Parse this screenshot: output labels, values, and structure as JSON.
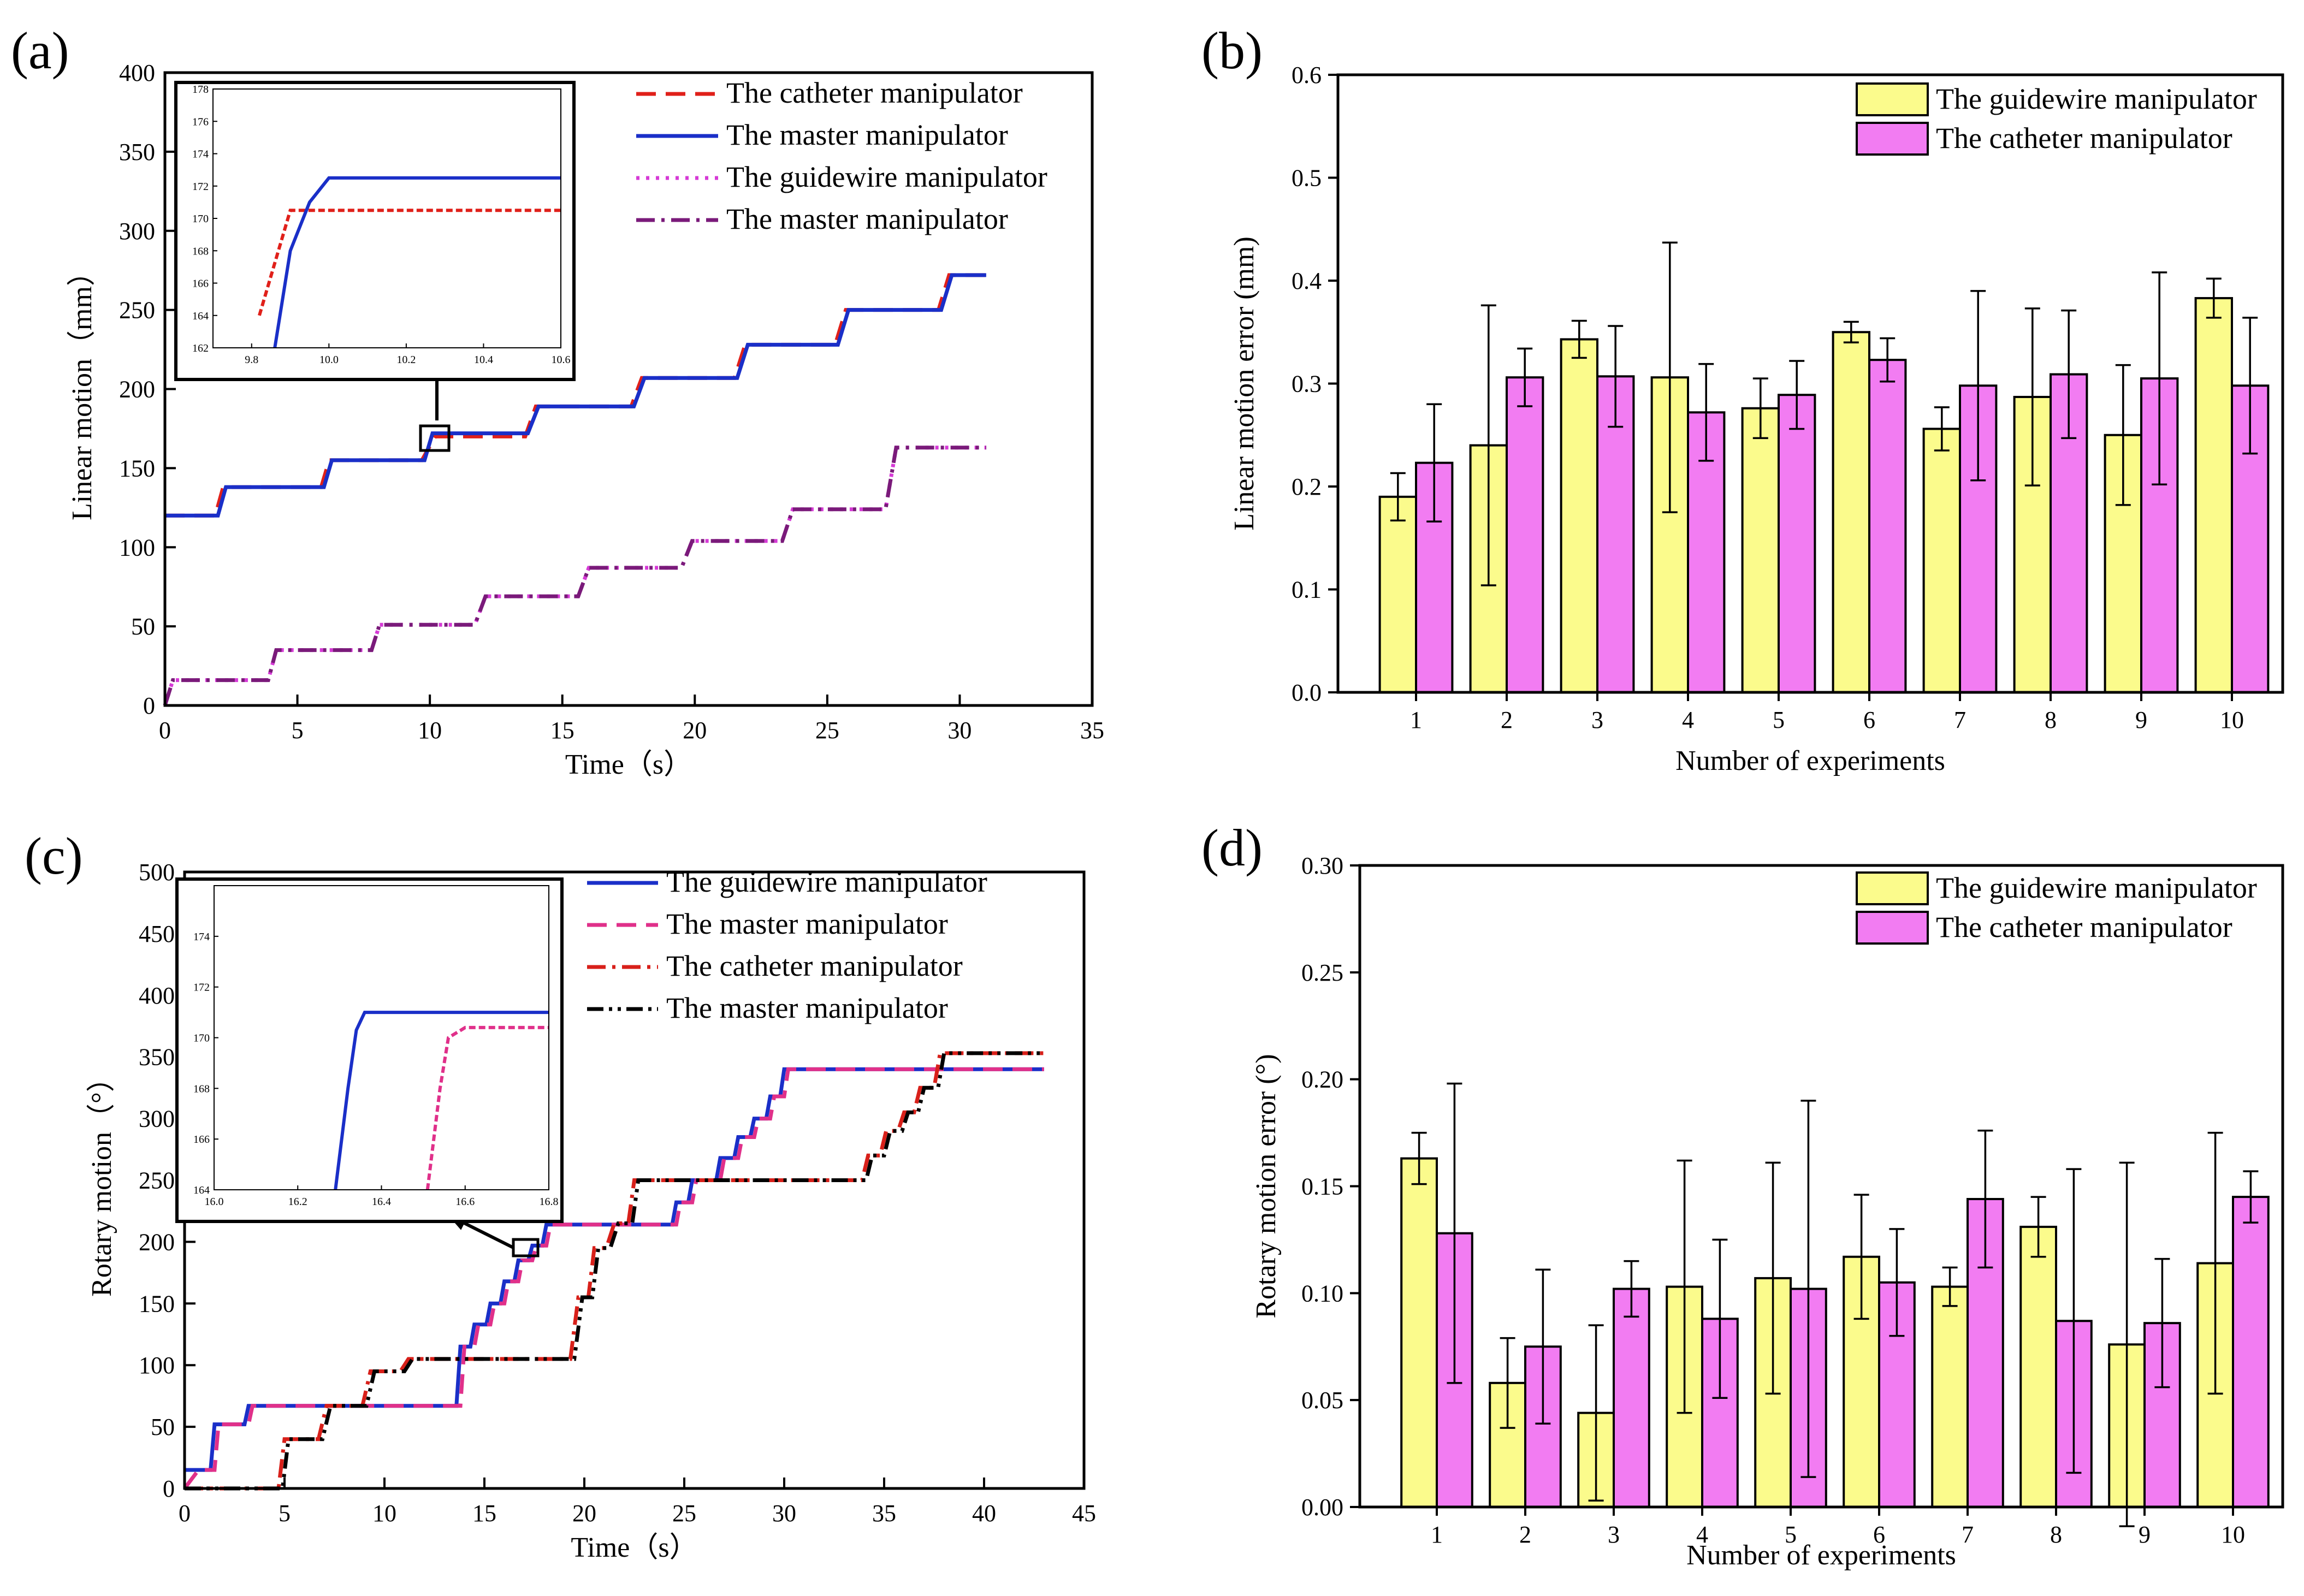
{
  "panels": {
    "a": {
      "label": "(a)"
    },
    "b": {
      "label": "(b)"
    },
    "c": {
      "label": "(c)"
    },
    "d": {
      "label": "(d)"
    }
  },
  "chart_data": [
    {
      "id": "a",
      "type": "line",
      "xlabel": "Time（s）",
      "ylabel": "Linear motion（mm）",
      "xlim": [
        0,
        35
      ],
      "ylim": [
        0,
        400
      ],
      "xticks": [
        0,
        5,
        10,
        15,
        20,
        25,
        30,
        35
      ],
      "yticks": [
        0,
        50,
        100,
        150,
        200,
        250,
        300,
        350,
        400
      ],
      "series": [
        {
          "name": "The catheter manipulator",
          "color": "#e0201a",
          "dash": "dashed",
          "x": [
            0,
            1.9,
            2.2,
            5.9,
            6.2,
            9.7,
            10.2,
            13.6,
            14,
            17.6,
            18,
            21.5,
            21.9,
            25.3,
            25.7,
            29.2,
            29.6,
            31
          ],
          "y": [
            120,
            120,
            138,
            138,
            155,
            155,
            170,
            170,
            189,
            189,
            207,
            207,
            228,
            228,
            250,
            250,
            272,
            272
          ]
        },
        {
          "name": "The master manipulator",
          "color": "#1a2fc8",
          "dash": "solid",
          "x": [
            0,
            2,
            2.3,
            6,
            6.3,
            9.8,
            10.1,
            13.7,
            14.1,
            17.7,
            18.1,
            21.6,
            22,
            25.4,
            25.8,
            29.3,
            29.7,
            31
          ],
          "y": [
            120,
            120,
            138,
            138,
            155,
            155,
            172,
            172,
            189,
            189,
            207,
            207,
            228,
            228,
            250,
            250,
            272,
            272
          ]
        },
        {
          "name": "The guidewire manipulator",
          "color": "#d63ad6",
          "dash": "dotted",
          "x": [
            0,
            0.3,
            3.9,
            4.2,
            7.8,
            8.1,
            11.7,
            12.1,
            15.6,
            16,
            19.5,
            19.9,
            23.3,
            23.7,
            27.2,
            27.6,
            31
          ],
          "y": [
            0,
            16,
            16,
            35,
            35,
            51,
            51,
            69,
            69,
            87,
            87,
            104,
            104,
            124,
            124,
            163,
            163
          ]
        },
        {
          "name": "The master manipulator",
          "color": "#7a1a7a",
          "dash": "dashdot",
          "x": [
            0,
            0.3,
            3.9,
            4.2,
            7.8,
            8.1,
            11.7,
            12.1,
            15.6,
            16,
            19.5,
            19.9,
            23.3,
            23.7,
            27.2,
            27.6,
            31
          ],
          "y": [
            0,
            16,
            16,
            35,
            35,
            51,
            51,
            69,
            69,
            87,
            87,
            104,
            104,
            124,
            124,
            163,
            163
          ]
        }
      ],
      "inset": {
        "xlim": [
          9.7,
          10.6
        ],
        "ylim": [
          162,
          178
        ],
        "xticks": [
          9.8,
          10.0,
          10.2,
          10.4,
          10.6
        ],
        "yticks": [
          162,
          164,
          166,
          168,
          170,
          172,
          174,
          176,
          178
        ],
        "series": [
          {
            "color": "#e0201a",
            "dash": "dashed",
            "x": [
              9.82,
              9.9,
              10.6
            ],
            "y": [
              164,
              170.5,
              170.5
            ]
          },
          {
            "color": "#1a2fc8",
            "dash": "solid",
            "x": [
              9.86,
              9.9,
              9.95,
              10.0,
              10.6
            ],
            "y": [
              162,
              168,
              171,
              172.5,
              172.5
            ]
          }
        ]
      }
    },
    {
      "id": "b",
      "type": "bar",
      "xlabel": "Number of experiments",
      "ylabel": "Linear motion error (mm)",
      "ylim": [
        0,
        0.6
      ],
      "yticks": [
        "0.0",
        "0.1",
        "0.2",
        "0.3",
        "0.4",
        "0.5",
        "0.6"
      ],
      "categories": [
        "1",
        "2",
        "3",
        "4",
        "5",
        "6",
        "7",
        "8",
        "9",
        "10"
      ],
      "series": [
        {
          "name": "The guidewire manipulator",
          "color": "#fbfb8c",
          "values": [
            0.19,
            0.24,
            0.343,
            0.306,
            0.276,
            0.35,
            0.256,
            0.287,
            0.25,
            0.383
          ],
          "errors": [
            0.023,
            0.136,
            0.018,
            0.131,
            0.029,
            0.01,
            0.021,
            0.086,
            0.068,
            0.019
          ]
        },
        {
          "name": "The catheter manipulator",
          "color": "#f27cf2",
          "values": [
            0.223,
            0.306,
            0.307,
            0.272,
            0.289,
            0.323,
            0.298,
            0.309,
            0.305,
            0.298
          ],
          "errors": [
            0.057,
            0.028,
            0.049,
            0.047,
            0.033,
            0.021,
            0.092,
            0.062,
            0.103,
            0.066
          ]
        }
      ]
    },
    {
      "id": "c",
      "type": "line",
      "xlabel": "Time（s）",
      "ylabel": "Rotary motion（°）",
      "xlim": [
        0,
        45
      ],
      "ylim": [
        0,
        500
      ],
      "xticks": [
        0,
        5,
        10,
        15,
        20,
        25,
        30,
        35,
        40,
        45
      ],
      "yticks": [
        0,
        50,
        100,
        150,
        200,
        250,
        300,
        350,
        400,
        450,
        500
      ],
      "series": [
        {
          "name": "The guidewire manipulator",
          "color": "#1a2fc8",
          "dash": "solid",
          "x": [
            0,
            0.5,
            1.3,
            1.5,
            3,
            3.2,
            13.6,
            13.8,
            14.3,
            14.5,
            15.1,
            15.3,
            15.8,
            16,
            16.5,
            16.7,
            17.2,
            17.4,
            17.9,
            18.1,
            24.4,
            24.6,
            25.2,
            25.4,
            26.6,
            26.8,
            27.5,
            27.7,
            28.3,
            28.5,
            29.1,
            29.3,
            29.8,
            30,
            43
          ],
          "y": [
            15,
            15,
            15,
            52,
            52,
            67,
            67,
            115,
            115,
            133,
            133,
            150,
            150,
            168,
            168,
            185,
            185,
            197,
            197,
            214,
            214,
            232,
            232,
            250,
            250,
            268,
            268,
            285,
            285,
            300,
            300,
            318,
            318,
            340,
            340
          ]
        },
        {
          "name": "The master manipulator",
          "color": "#e0308a",
          "dash": "dashed",
          "x": [
            0,
            0.7,
            1.5,
            1.7,
            3.2,
            3.4,
            13.8,
            14,
            14.5,
            14.7,
            15.3,
            15.5,
            16,
            16.2,
            16.7,
            16.9,
            17.4,
            17.6,
            18.1,
            18.3,
            24.6,
            24.8,
            25.4,
            25.6,
            26.8,
            27,
            27.7,
            27.9,
            28.5,
            28.7,
            29.3,
            29.5,
            30,
            30.2,
            43
          ],
          "y": [
            0,
            15,
            15,
            52,
            52,
            67,
            67,
            115,
            115,
            133,
            133,
            150,
            150,
            168,
            168,
            185,
            185,
            197,
            197,
            214,
            214,
            232,
            232,
            250,
            250,
            268,
            268,
            285,
            285,
            300,
            300,
            318,
            318,
            340,
            340
          ]
        },
        {
          "name": "The catheter manipulator",
          "color": "#d8201a",
          "dash": "dashdot",
          "x": [
            0,
            4.7,
            5.0,
            6.7,
            7.1,
            8.9,
            9.3,
            10.8,
            11.2,
            19.3,
            19.7,
            20.2,
            20.5,
            21.1,
            21.5,
            22.2,
            22.5,
            33.9,
            34.2,
            34.8,
            35.1,
            35.7,
            36.0,
            36.5,
            36.8,
            37.5,
            37.8,
            43
          ],
          "y": [
            0,
            0,
            40,
            40,
            67,
            67,
            95,
            95,
            105,
            105,
            155,
            155,
            195,
            195,
            215,
            215,
            250,
            250,
            270,
            270,
            290,
            290,
            305,
            305,
            325,
            325,
            353,
            353
          ]
        },
        {
          "name": "The master manipulator",
          "color": "#000000",
          "dash": "dashdotdot",
          "x": [
            0,
            4.9,
            5.2,
            6.9,
            7.3,
            9.1,
            9.5,
            11,
            11.4,
            19.5,
            19.9,
            20.4,
            20.7,
            21.3,
            21.7,
            22.4,
            22.7,
            34.1,
            34.4,
            35.0,
            35.3,
            35.9,
            36.2,
            36.7,
            37.0,
            37.7,
            38.0,
            43
          ],
          "y": [
            0,
            0,
            40,
            40,
            67,
            67,
            95,
            95,
            105,
            105,
            155,
            155,
            195,
            195,
            215,
            215,
            250,
            250,
            270,
            270,
            290,
            290,
            305,
            305,
            325,
            325,
            353,
            353
          ]
        }
      ],
      "inset": {
        "xlim": [
          16.0,
          16.8
        ],
        "ylim": [
          164,
          176
        ],
        "xticks": [
          16.0,
          16.2,
          16.4,
          16.6,
          16.8
        ],
        "yticks": [
          164,
          166,
          168,
          170,
          172,
          174
        ],
        "series": [
          {
            "color": "#1a2fc8",
            "dash": "solid",
            "x": [
              16.29,
              16.32,
              16.34,
              16.36,
              16.8
            ],
            "y": [
              164,
              168,
              170.3,
              171,
              171
            ]
          },
          {
            "color": "#e0308a",
            "dash": "dashed",
            "x": [
              16.51,
              16.54,
              16.56,
              16.6,
              16.8
            ],
            "y": [
              164,
              168,
              170,
              170.4,
              170.4
            ]
          }
        ]
      }
    },
    {
      "id": "d",
      "type": "bar",
      "xlabel": "Number of experiments",
      "ylabel": "Rotary motion error (°)",
      "ylim": [
        0,
        0.3
      ],
      "yticks": [
        "0.00",
        "0.05",
        "0.10",
        "0.15",
        "0.20",
        "0.25",
        "0.30"
      ],
      "categories": [
        "1",
        "2",
        "3",
        "4",
        "5",
        "6",
        "7",
        "8",
        "9",
        "10"
      ],
      "series": [
        {
          "name": "The guidewire manipulator",
          "color": "#fbfb8c",
          "values": [
            0.163,
            0.058,
            0.044,
            0.103,
            0.107,
            0.117,
            0.103,
            0.131,
            0.076,
            0.114
          ],
          "errors": [
            0.012,
            0.021,
            0.041,
            0.059,
            0.054,
            0.029,
            0.009,
            0.014,
            0.085,
            0.061
          ]
        },
        {
          "name": "The catheter manipulator",
          "color": "#f27cf2",
          "values": [
            0.128,
            0.075,
            0.102,
            0.088,
            0.102,
            0.105,
            0.144,
            0.087,
            0.086,
            0.145
          ],
          "errors": [
            0.07,
            0.036,
            0.013,
            0.037,
            0.088,
            0.025,
            0.032,
            0.071,
            0.03,
            0.012
          ]
        }
      ]
    }
  ]
}
